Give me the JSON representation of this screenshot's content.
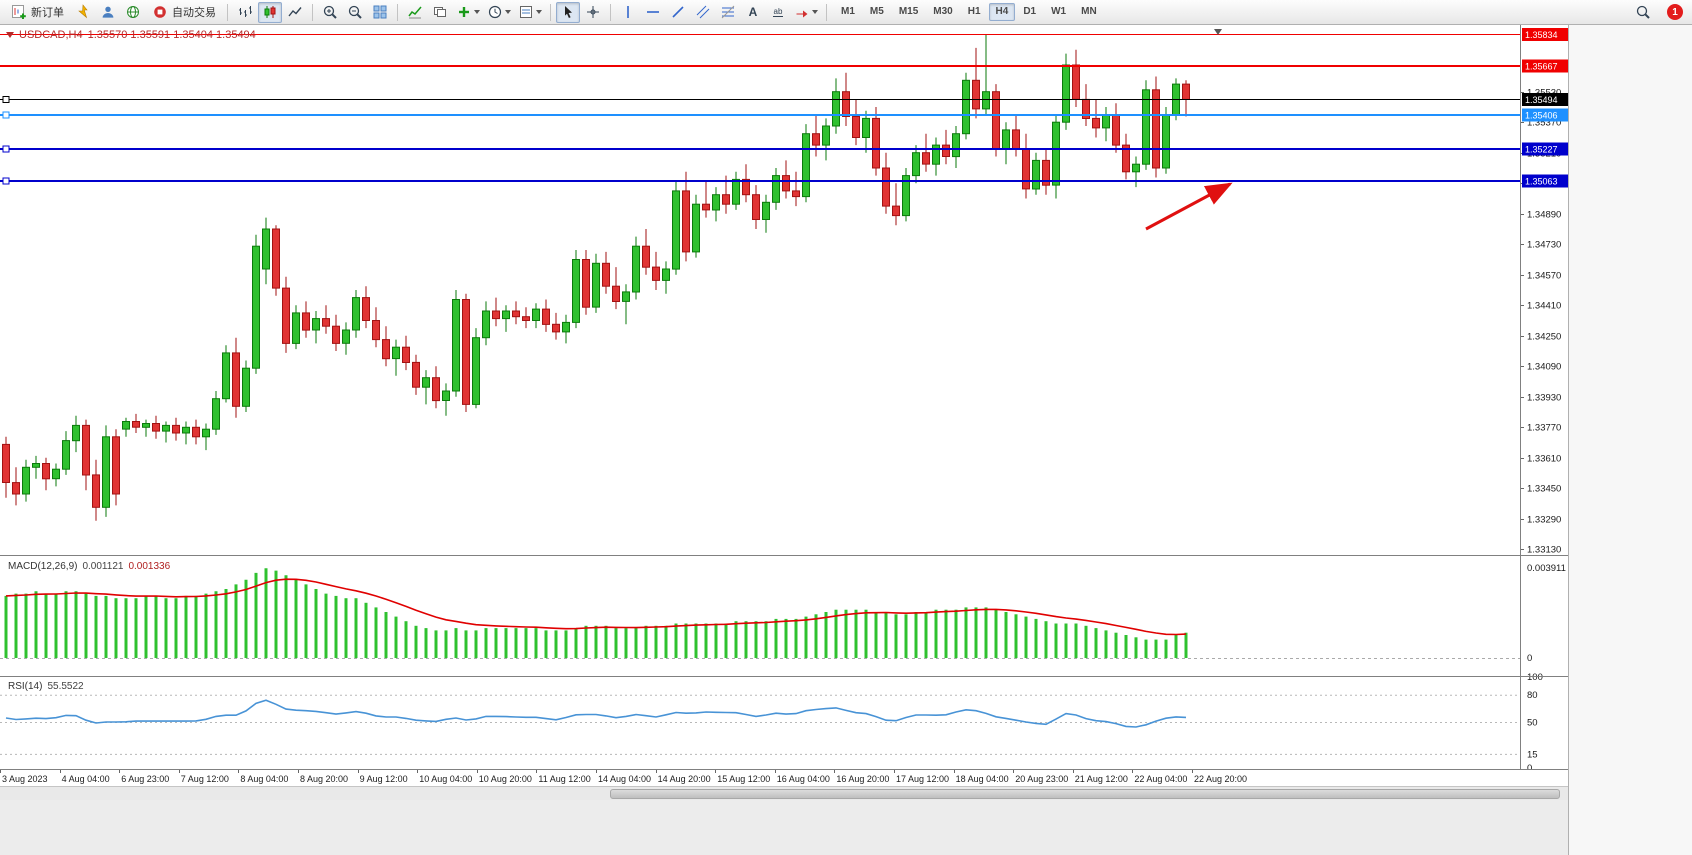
{
  "toolbar": {
    "new_order_label": "新订单",
    "auto_trading_label": "自动交易",
    "timeframes": [
      "M1",
      "M5",
      "M15",
      "M30",
      "H1",
      "H4",
      "D1",
      "W1",
      "MN"
    ],
    "active_timeframe": "H4",
    "notification_count": "1",
    "icons": [
      "new-order",
      "metaeditor",
      "profiles",
      "mql5-community",
      "auto-trading",
      "bar-chart",
      "candlestick-chart",
      "line-chart",
      "zoom-in",
      "zoom-out",
      "tile-windows",
      "indicators",
      "objects-list",
      "add-indicator",
      "periods",
      "templates",
      "cursor",
      "crosshair",
      "vertical-line",
      "horizontal-line",
      "trendline",
      "channel",
      "fibonacci",
      "text",
      "text-label",
      "arrows",
      "search",
      "notification"
    ]
  },
  "chart": {
    "title": "USDCAD,H4",
    "ohlc_text": "1.35570 1.35591 1.35404 1.35494",
    "hlines": [
      {
        "price": "1.35834",
        "color": "#f00000",
        "width": 1.4,
        "handle": false
      },
      {
        "price": "1.35667",
        "color": "#f00000",
        "width": 2,
        "handle": false
      },
      {
        "price": "1.35494",
        "color": "#000000",
        "width": 1.2,
        "handle": true
      },
      {
        "price": "1.35406",
        "color": "#1e90ff",
        "width": 2,
        "handle": true
      },
      {
        "price": "1.35227",
        "color": "#0000cc",
        "width": 2,
        "handle": true
      },
      {
        "price": "1.35063",
        "color": "#0000cc",
        "width": 2,
        "handle": true
      }
    ],
    "y_ticks": [
      "1.35530",
      "1.35370",
      "1.35210",
      "1.35050",
      "1.34890",
      "1.34730",
      "1.34570",
      "1.34410",
      "1.34250",
      "1.34090",
      "1.33930",
      "1.33770",
      "1.33610",
      "1.33450",
      "1.33290",
      "1.33130"
    ],
    "time_labels": [
      "3 Aug 2023",
      "4 Aug 04:00",
      "6 Aug 23:00",
      "7 Aug 12:00",
      "8 Aug 04:00",
      "8 Aug 20:00",
      "9 Aug 12:00",
      "10 Aug 04:00",
      "10 Aug 20:00",
      "11 Aug 12:00",
      "14 Aug 04:00",
      "14 Aug 20:00",
      "15 Aug 12:00",
      "16 Aug 04:00",
      "16 Aug 20:00",
      "17 Aug 12:00",
      "18 Aug 04:00",
      "20 Aug 23:00",
      "21 Aug 12:00",
      "22 Aug 04:00",
      "22 Aug 20:00"
    ],
    "macd": {
      "label": "MACD(12,26,9)",
      "value": "0.001121",
      "signal_value": "0.001336",
      "scale_max": "0.003911",
      "scale_zero": "0"
    },
    "rsi": {
      "label": "RSI(14)",
      "value": "55.5522",
      "levels": [
        "100",
        "80",
        "50",
        "15",
        "0"
      ]
    }
  },
  "annotation": {
    "type": "arrow",
    "color": "#e01010",
    "from": [
      1146,
      204
    ],
    "to": [
      1230,
      159
    ]
  },
  "chart_data": {
    "type": "candlestick",
    "symbol": "USDCAD",
    "timeframe": "H4",
    "price_range": {
      "top": 1.3588,
      "bottom": 1.331
    },
    "colors": {
      "up": "#2fc12f",
      "up_border": "#0b7a0b",
      "down": "#e13434",
      "down_border": "#a21212",
      "macd": "#2fc12f",
      "macd_signal": "#e00000",
      "rsi": "#4893d6"
    },
    "hline_values": [
      1.35834,
      1.35667,
      1.35494,
      1.35406,
      1.35227,
      1.35063
    ],
    "macd_params": {
      "fast": 12,
      "slow": 26,
      "signal": 9,
      "value": 0.001121,
      "signal_value": 0.001336
    },
    "rsi_params": {
      "period": 14,
      "value": 55.5522
    },
    "macd_scale_max": 0.003911,
    "rsi_levels": [
      80,
      50,
      15
    ],
    "candles": [
      [
        1.3368,
        1.3372,
        1.334,
        1.3348
      ],
      [
        1.3348,
        1.3356,
        1.3336,
        1.3342
      ],
      [
        1.3342,
        1.336,
        1.3338,
        1.3356
      ],
      [
        1.3356,
        1.3362,
        1.335,
        1.3358
      ],
      [
        1.3358,
        1.3361,
        1.3344,
        1.335
      ],
      [
        1.335,
        1.3358,
        1.3346,
        1.3355
      ],
      [
        1.3355,
        1.3375,
        1.3352,
        1.337
      ],
      [
        1.337,
        1.3383,
        1.3364,
        1.3378
      ],
      [
        1.3378,
        1.3381,
        1.3344,
        1.3352
      ],
      [
        1.3352,
        1.336,
        1.3328,
        1.3335
      ],
      [
        1.3335,
        1.3378,
        1.333,
        1.3372
      ],
      [
        1.3372,
        1.3376,
        1.3336,
        1.3342
      ],
      [
        1.3376,
        1.3382,
        1.3372,
        1.338
      ],
      [
        1.338,
        1.3384,
        1.3374,
        1.3377
      ],
      [
        1.3377,
        1.3381,
        1.3372,
        1.3379
      ],
      [
        1.3379,
        1.3383,
        1.3371,
        1.3375
      ],
      [
        1.3375,
        1.338,
        1.3369,
        1.3378
      ],
      [
        1.3378,
        1.3382,
        1.337,
        1.3374
      ],
      [
        1.3374,
        1.338,
        1.3368,
        1.3377
      ],
      [
        1.3377,
        1.3381,
        1.3368,
        1.3372
      ],
      [
        1.3372,
        1.3379,
        1.3365,
        1.3376
      ],
      [
        1.3376,
        1.3396,
        1.3373,
        1.3392
      ],
      [
        1.3392,
        1.342,
        1.339,
        1.3416
      ],
      [
        1.3416,
        1.3424,
        1.3382,
        1.3388
      ],
      [
        1.3388,
        1.3412,
        1.3385,
        1.3408
      ],
      [
        1.3408,
        1.3478,
        1.3405,
        1.3472
      ],
      [
        1.346,
        1.3487,
        1.3452,
        1.3481
      ],
      [
        1.3481,
        1.3483,
        1.3446,
        1.345
      ],
      [
        1.345,
        1.3456,
        1.3416,
        1.3421
      ],
      [
        1.3421,
        1.3441,
        1.3418,
        1.3437
      ],
      [
        1.3437,
        1.3443,
        1.3424,
        1.3428
      ],
      [
        1.3428,
        1.3438,
        1.3421,
        1.3434
      ],
      [
        1.3434,
        1.3441,
        1.3426,
        1.343
      ],
      [
        1.343,
        1.3436,
        1.3417,
        1.3421
      ],
      [
        1.3421,
        1.3432,
        1.3415,
        1.3428
      ],
      [
        1.3428,
        1.3449,
        1.3424,
        1.3445
      ],
      [
        1.3445,
        1.3451,
        1.3429,
        1.3433
      ],
      [
        1.3433,
        1.344,
        1.3419,
        1.3423
      ],
      [
        1.3423,
        1.343,
        1.3409,
        1.3413
      ],
      [
        1.3413,
        1.3423,
        1.3404,
        1.3419
      ],
      [
        1.3419,
        1.3425,
        1.3407,
        1.3411
      ],
      [
        1.3411,
        1.3415,
        1.3394,
        1.3398
      ],
      [
        1.3398,
        1.3407,
        1.3389,
        1.3403
      ],
      [
        1.3403,
        1.3409,
        1.3387,
        1.3391
      ],
      [
        1.3391,
        1.34,
        1.3383,
        1.3396
      ],
      [
        1.3396,
        1.3449,
        1.3393,
        1.3444
      ],
      [
        1.3444,
        1.3447,
        1.3385,
        1.3389
      ],
      [
        1.3389,
        1.3429,
        1.3387,
        1.3424
      ],
      [
        1.3424,
        1.3443,
        1.342,
        1.3438
      ],
      [
        1.3438,
        1.3445,
        1.343,
        1.3434
      ],
      [
        1.3434,
        1.3441,
        1.3427,
        1.3438
      ],
      [
        1.3438,
        1.3443,
        1.3431,
        1.3435
      ],
      [
        1.3435,
        1.344,
        1.3429,
        1.3433
      ],
      [
        1.3433,
        1.3442,
        1.3429,
        1.3439
      ],
      [
        1.3439,
        1.3444,
        1.3427,
        1.3431
      ],
      [
        1.3431,
        1.3437,
        1.3423,
        1.3427
      ],
      [
        1.3427,
        1.3436,
        1.3421,
        1.3432
      ],
      [
        1.3432,
        1.347,
        1.3429,
        1.3465
      ],
      [
        1.3465,
        1.347,
        1.3436,
        1.344
      ],
      [
        1.344,
        1.3468,
        1.3437,
        1.3463
      ],
      [
        1.3463,
        1.3469,
        1.3447,
        1.3451
      ],
      [
        1.3451,
        1.3461,
        1.3439,
        1.3443
      ],
      [
        1.3443,
        1.3452,
        1.3431,
        1.3448
      ],
      [
        1.3448,
        1.3477,
        1.3444,
        1.3472
      ],
      [
        1.3472,
        1.3481,
        1.3457,
        1.3461
      ],
      [
        1.3461,
        1.3469,
        1.3449,
        1.3454
      ],
      [
        1.3454,
        1.3464,
        1.3447,
        1.346
      ],
      [
        1.346,
        1.3506,
        1.3457,
        1.3501
      ],
      [
        1.3501,
        1.3511,
        1.3464,
        1.3469
      ],
      [
        1.3469,
        1.3499,
        1.3466,
        1.3494
      ],
      [
        1.3494,
        1.3506,
        1.3487,
        1.3491
      ],
      [
        1.3491,
        1.3503,
        1.3485,
        1.3499
      ],
      [
        1.3499,
        1.3509,
        1.3489,
        1.3494
      ],
      [
        1.3494,
        1.3511,
        1.3491,
        1.3507
      ],
      [
        1.3507,
        1.3515,
        1.3495,
        1.3499
      ],
      [
        1.3499,
        1.3504,
        1.3481,
        1.3486
      ],
      [
        1.3486,
        1.3499,
        1.3479,
        1.3495
      ],
      [
        1.3495,
        1.3513,
        1.3491,
        1.3509
      ],
      [
        1.3509,
        1.3517,
        1.3497,
        1.3501
      ],
      [
        1.3501,
        1.3511,
        1.3493,
        1.3498
      ],
      [
        1.3498,
        1.3536,
        1.3495,
        1.3531
      ],
      [
        1.3531,
        1.3541,
        1.3519,
        1.3525
      ],
      [
        1.3525,
        1.3539,
        1.3517,
        1.3535
      ],
      [
        1.3535,
        1.356,
        1.3531,
        1.3553
      ],
      [
        1.3553,
        1.3563,
        1.3535,
        1.354
      ],
      [
        1.354,
        1.3549,
        1.3525,
        1.3529
      ],
      [
        1.3529,
        1.3543,
        1.3521,
        1.3539
      ],
      [
        1.3539,
        1.3545,
        1.3509,
        1.3513
      ],
      [
        1.3513,
        1.3521,
        1.3489,
        1.3493
      ],
      [
        1.3493,
        1.3505,
        1.3483,
        1.3488
      ],
      [
        1.3488,
        1.3513,
        1.3485,
        1.3509
      ],
      [
        1.3509,
        1.3525,
        1.3505,
        1.3521
      ],
      [
        1.3521,
        1.3531,
        1.3511,
        1.3515
      ],
      [
        1.3515,
        1.3529,
        1.3509,
        1.3525
      ],
      [
        1.3525,
        1.3533,
        1.3515,
        1.3519
      ],
      [
        1.3519,
        1.3535,
        1.3513,
        1.3531
      ],
      [
        1.3531,
        1.3563,
        1.3528,
        1.3559
      ],
      [
        1.3559,
        1.3576,
        1.3539,
        1.3544
      ],
      [
        1.3544,
        1.3583,
        1.3541,
        1.3553
      ],
      [
        1.3553,
        1.3557,
        1.3519,
        1.3523
      ],
      [
        1.3523,
        1.3537,
        1.3515,
        1.3533
      ],
      [
        1.3533,
        1.3541,
        1.3519,
        1.3523
      ],
      [
        1.3523,
        1.3531,
        1.3497,
        1.3502
      ],
      [
        1.3502,
        1.3521,
        1.3499,
        1.3517
      ],
      [
        1.3517,
        1.3523,
        1.3499,
        1.3504
      ],
      [
        1.3504,
        1.3541,
        1.3497,
        1.3537
      ],
      [
        1.3537,
        1.3573,
        1.3533,
        1.3567
      ],
      [
        1.3567,
        1.3575,
        1.3545,
        1.3549
      ],
      [
        1.3549,
        1.3557,
        1.3535,
        1.3539
      ],
      [
        1.3539,
        1.3549,
        1.3529,
        1.3534
      ],
      [
        1.3534,
        1.3545,
        1.3527,
        1.3541
      ],
      [
        1.3541,
        1.3547,
        1.3521,
        1.3525
      ],
      [
        1.3525,
        1.3531,
        1.3507,
        1.3511
      ],
      [
        1.3511,
        1.3519,
        1.3503,
        1.3515
      ],
      [
        1.3515,
        1.3559,
        1.3512,
        1.3554
      ],
      [
        1.3554,
        1.3561,
        1.3508,
        1.3513
      ],
      [
        1.3513,
        1.3545,
        1.351,
        1.3541
      ],
      [
        1.3541,
        1.356,
        1.3538,
        1.3557
      ],
      [
        1.3557,
        1.3559,
        1.354,
        1.3549
      ]
    ],
    "macd_histogram": [
      0.0027,
      0.0028,
      0.0028,
      0.0029,
      0.0028,
      0.0028,
      0.0029,
      0.0029,
      0.0028,
      0.0027,
      0.0027,
      0.0026,
      0.0026,
      0.0026,
      0.0027,
      0.0027,
      0.0026,
      0.0026,
      0.0027,
      0.0027,
      0.0028,
      0.0029,
      0.003,
      0.0032,
      0.0034,
      0.0037,
      0.0039,
      0.0038,
      0.0036,
      0.0034,
      0.0032,
      0.003,
      0.0028,
      0.0027,
      0.0026,
      0.0026,
      0.0024,
      0.0022,
      0.002,
      0.0018,
      0.0016,
      0.0014,
      0.0013,
      0.0012,
      0.0012,
      0.0013,
      0.0012,
      0.0012,
      0.0013,
      0.0013,
      0.0013,
      0.0013,
      0.0013,
      0.0013,
      0.0012,
      0.0012,
      0.0012,
      0.0013,
      0.0014,
      0.0014,
      0.0014,
      0.0013,
      0.0013,
      0.0013,
      0.0014,
      0.0014,
      0.0014,
      0.0015,
      0.0015,
      0.0015,
      0.0015,
      0.0015,
      0.0015,
      0.0016,
      0.0016,
      0.0016,
      0.0016,
      0.0017,
      0.0017,
      0.0017,
      0.0018,
      0.0019,
      0.002,
      0.0021,
      0.0021,
      0.0021,
      0.0021,
      0.002,
      0.002,
      0.0019,
      0.0019,
      0.002,
      0.002,
      0.0021,
      0.0021,
      0.0021,
      0.0022,
      0.0022,
      0.0022,
      0.0021,
      0.002,
      0.0019,
      0.0018,
      0.0017,
      0.0016,
      0.0015,
      0.0015,
      0.0015,
      0.0014,
      0.0013,
      0.0012,
      0.0011,
      0.001,
      0.0009,
      0.0008,
      0.0008,
      0.0008,
      0.001,
      0.0011
    ],
    "rsi": [
      55,
      52,
      54,
      56,
      53,
      55,
      58,
      60,
      52,
      46,
      54,
      48,
      52,
      51,
      52,
      51,
      52,
      51,
      52,
      51,
      53,
      57,
      60,
      55,
      62,
      72,
      78,
      70,
      62,
      65,
      62,
      63,
      61,
      58,
      60,
      64,
      60,
      57,
      55,
      57,
      55,
      51,
      53,
      50,
      52,
      60,
      48,
      55,
      58,
      56,
      57,
      56,
      55,
      57,
      54,
      52,
      54,
      62,
      56,
      61,
      57,
      54,
      56,
      61,
      57,
      55,
      57,
      65,
      57,
      62,
      61,
      62,
      60,
      62,
      59,
      55,
      58,
      62,
      59,
      57,
      66,
      63,
      65,
      68,
      63,
      59,
      62,
      56,
      52,
      50,
      56,
      60,
      57,
      59,
      57,
      61,
      67,
      61,
      63,
      53,
      56,
      53,
      48,
      53,
      42,
      55,
      63,
      58,
      54,
      51,
      52,
      49,
      45,
      44,
      47,
      52,
      55,
      57,
      55.55
    ]
  }
}
